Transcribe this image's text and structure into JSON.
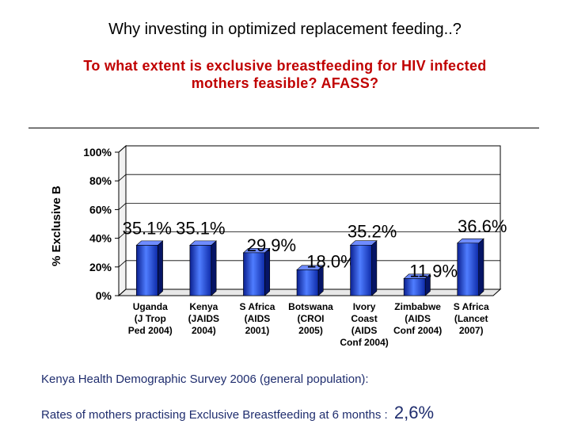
{
  "slide": {
    "title": "Why investing in optimized replacement feeding..?",
    "subtitle_line1": "To what extent is exclusive breastfeeding for HIV infected",
    "subtitle_line2": "mothers feasible? AFASS?"
  },
  "notes": {
    "line1": "Kenya Health Demographic Survey 2006 (general population):",
    "line2_prefix": "Rates of mothers practising Exclusive Breastfeeding at 6 months :",
    "line2_value": "2,6%"
  },
  "chart_data": {
    "type": "bar",
    "ylabel": "% Exclusive B",
    "ylim": [
      0,
      100
    ],
    "yticks": [
      "0%",
      "20%",
      "40%",
      "60%",
      "80%",
      "100%"
    ],
    "grid": true,
    "bar_color": "#2a57e8",
    "categories": [
      [
        "Uganda",
        "(J Trop",
        "Ped 2004)"
      ],
      [
        "Kenya",
        "(JAIDS",
        "2004)"
      ],
      [
        "S Africa",
        "(AIDS",
        "2001)"
      ],
      [
        "Botswana",
        "(CROI",
        "2005)"
      ],
      [
        "Ivory",
        "Coast",
        "(AIDS",
        "Conf 2004)"
      ],
      [
        "Zimbabwe",
        "(AIDS",
        "Conf 2004)"
      ],
      [
        "S Africa",
        "(Lancet",
        "2007)"
      ]
    ],
    "values": [
      35.1,
      35.1,
      29.9,
      18.0,
      35.2,
      11.9,
      36.6
    ],
    "data_labels": [
      "35.1%",
      "35.1%",
      "29.9%",
      "18.0%",
      "35.2%",
      "11.9%",
      "36.6%"
    ]
  }
}
